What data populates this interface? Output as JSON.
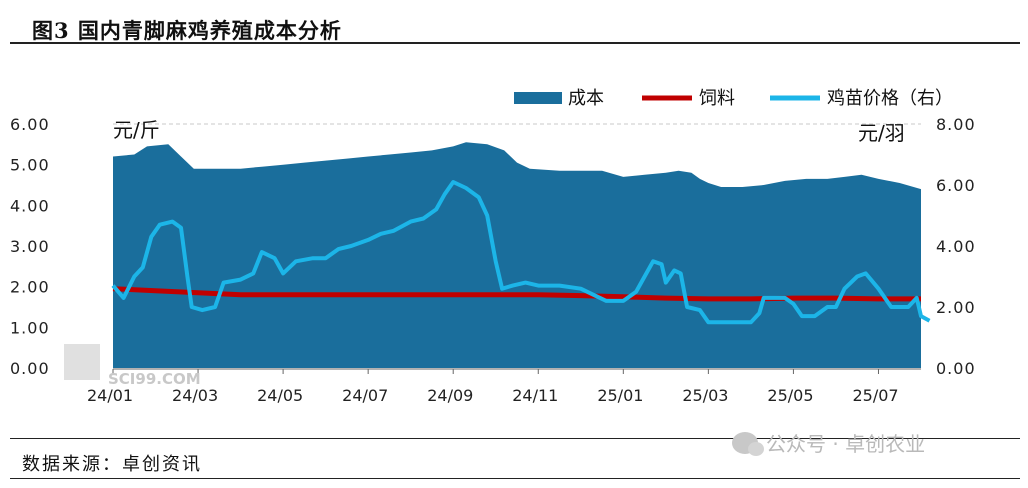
{
  "header": {
    "title": "图3 国内青脚麻鸡养殖成本分析"
  },
  "footer": {
    "source": "数据来源：卓创资讯",
    "watermark": "公众号 · 卓创农业"
  },
  "logo_text": "SCI99.COM",
  "chart_data": {
    "type": "area",
    "title": "图3 国内青脚麻鸡养殖成本分析",
    "left_unit": "元/斤",
    "right_unit": "元/羽",
    "ylim_left": [
      0,
      6
    ],
    "ylim_right": [
      0,
      8
    ],
    "left_ticks": [
      "0.00",
      "1.00",
      "2.00",
      "3.00",
      "4.00",
      "5.00",
      "6.00"
    ],
    "right_ticks": [
      "0.00",
      "2.00",
      "4.00",
      "6.00",
      "8.00"
    ],
    "x_ticks": [
      "24/01",
      "24/03",
      "24/05",
      "24/07",
      "24/09",
      "24/11",
      "25/01",
      "25/03",
      "25/05",
      "25/07"
    ],
    "x_range_months": [
      0,
      19
    ],
    "grid": "dashed horizontal at top",
    "legend_position": "top-right",
    "colors": {
      "cost": "#1a6e9c",
      "feed": "#c00000",
      "chick": "#1cb5e8"
    },
    "series": [
      {
        "name": "成本",
        "type": "area",
        "axis": "left",
        "points": [
          [
            0,
            5.2
          ],
          [
            0.5,
            5.25
          ],
          [
            0.8,
            5.45
          ],
          [
            1.3,
            5.5
          ],
          [
            1.6,
            5.2
          ],
          [
            1.9,
            4.9
          ],
          [
            2.5,
            4.9
          ],
          [
            3,
            4.9
          ],
          [
            3.5,
            4.95
          ],
          [
            4,
            5.0
          ],
          [
            4.5,
            5.05
          ],
          [
            5,
            5.1
          ],
          [
            5.5,
            5.15
          ],
          [
            6,
            5.2
          ],
          [
            6.5,
            5.25
          ],
          [
            7,
            5.3
          ],
          [
            7.5,
            5.35
          ],
          [
            8,
            5.45
          ],
          [
            8.3,
            5.55
          ],
          [
            8.8,
            5.5
          ],
          [
            9.2,
            5.35
          ],
          [
            9.5,
            5.05
          ],
          [
            9.8,
            4.9
          ],
          [
            10.5,
            4.85
          ],
          [
            11,
            4.85
          ],
          [
            11.5,
            4.85
          ],
          [
            12,
            4.7
          ],
          [
            12.5,
            4.75
          ],
          [
            13,
            4.8
          ],
          [
            13.3,
            4.85
          ],
          [
            13.6,
            4.8
          ],
          [
            13.8,
            4.65
          ],
          [
            14,
            4.55
          ],
          [
            14.3,
            4.45
          ],
          [
            14.8,
            4.45
          ],
          [
            15.3,
            4.5
          ],
          [
            15.8,
            4.6
          ],
          [
            16.3,
            4.65
          ],
          [
            16.8,
            4.65
          ],
          [
            17.2,
            4.7
          ],
          [
            17.6,
            4.75
          ],
          [
            18,
            4.65
          ],
          [
            18.5,
            4.55
          ],
          [
            19,
            4.4
          ]
        ]
      },
      {
        "name": "饲料",
        "type": "line",
        "axis": "left",
        "points": [
          [
            0,
            1.95
          ],
          [
            1,
            1.9
          ],
          [
            2,
            1.85
          ],
          [
            3,
            1.8
          ],
          [
            4,
            1.8
          ],
          [
            5,
            1.8
          ],
          [
            6,
            1.8
          ],
          [
            7,
            1.8
          ],
          [
            8,
            1.8
          ],
          [
            9,
            1.8
          ],
          [
            10,
            1.8
          ],
          [
            11,
            1.78
          ],
          [
            12,
            1.75
          ],
          [
            13,
            1.72
          ],
          [
            14,
            1.7
          ],
          [
            15,
            1.7
          ],
          [
            16,
            1.72
          ],
          [
            17,
            1.72
          ],
          [
            18,
            1.7
          ],
          [
            19,
            1.7
          ]
        ]
      },
      {
        "name": "鸡苗价格（右）",
        "type": "line",
        "axis": "right",
        "points": [
          [
            0,
            2.7
          ],
          [
            0.25,
            2.3
          ],
          [
            0.5,
            3.0
          ],
          [
            0.7,
            3.3
          ],
          [
            0.9,
            4.3
          ],
          [
            1.1,
            4.7
          ],
          [
            1.4,
            4.8
          ],
          [
            1.6,
            4.6
          ],
          [
            1.75,
            3.0
          ],
          [
            1.85,
            2.0
          ],
          [
            2.1,
            1.9
          ],
          [
            2.4,
            2.0
          ],
          [
            2.6,
            2.8
          ],
          [
            3,
            2.9
          ],
          [
            3.3,
            3.1
          ],
          [
            3.5,
            3.8
          ],
          [
            3.8,
            3.6
          ],
          [
            4,
            3.1
          ],
          [
            4.3,
            3.5
          ],
          [
            4.7,
            3.6
          ],
          [
            5,
            3.6
          ],
          [
            5.3,
            3.9
          ],
          [
            5.6,
            4.0
          ],
          [
            6,
            4.2
          ],
          [
            6.3,
            4.4
          ],
          [
            6.6,
            4.5
          ],
          [
            7,
            4.8
          ],
          [
            7.3,
            4.9
          ],
          [
            7.6,
            5.2
          ],
          [
            7.8,
            5.7
          ],
          [
            8,
            6.1
          ],
          [
            8.3,
            5.9
          ],
          [
            8.6,
            5.6
          ],
          [
            8.8,
            5.0
          ],
          [
            9,
            3.5
          ],
          [
            9.15,
            2.6
          ],
          [
            9.4,
            2.7
          ],
          [
            9.7,
            2.8
          ],
          [
            10,
            2.7
          ],
          [
            10.5,
            2.7
          ],
          [
            11,
            2.6
          ],
          [
            11.3,
            2.4
          ],
          [
            11.6,
            2.2
          ],
          [
            12,
            2.2
          ],
          [
            12.3,
            2.5
          ],
          [
            12.5,
            3.0
          ],
          [
            12.7,
            3.5
          ],
          [
            12.9,
            3.4
          ],
          [
            13,
            2.8
          ],
          [
            13.2,
            3.2
          ],
          [
            13.35,
            3.1
          ],
          [
            13.5,
            2.0
          ],
          [
            13.8,
            1.9
          ],
          [
            14,
            1.5
          ],
          [
            14.5,
            1.5
          ],
          [
            15,
            1.5
          ],
          [
            15.2,
            1.8
          ],
          [
            15.3,
            2.3
          ],
          [
            15.8,
            2.3
          ],
          [
            16,
            2.1
          ],
          [
            16.2,
            1.7
          ],
          [
            16.5,
            1.7
          ],
          [
            16.8,
            2.0
          ],
          [
            17,
            2.0
          ],
          [
            17.2,
            2.6
          ],
          [
            17.5,
            3.0
          ],
          [
            17.7,
            3.1
          ],
          [
            18,
            2.6
          ],
          [
            18.3,
            2.0
          ],
          [
            18.7,
            2.0
          ],
          [
            18.9,
            2.3
          ],
          [
            19,
            1.7
          ],
          [
            19.2,
            1.55
          ]
        ]
      }
    ]
  }
}
